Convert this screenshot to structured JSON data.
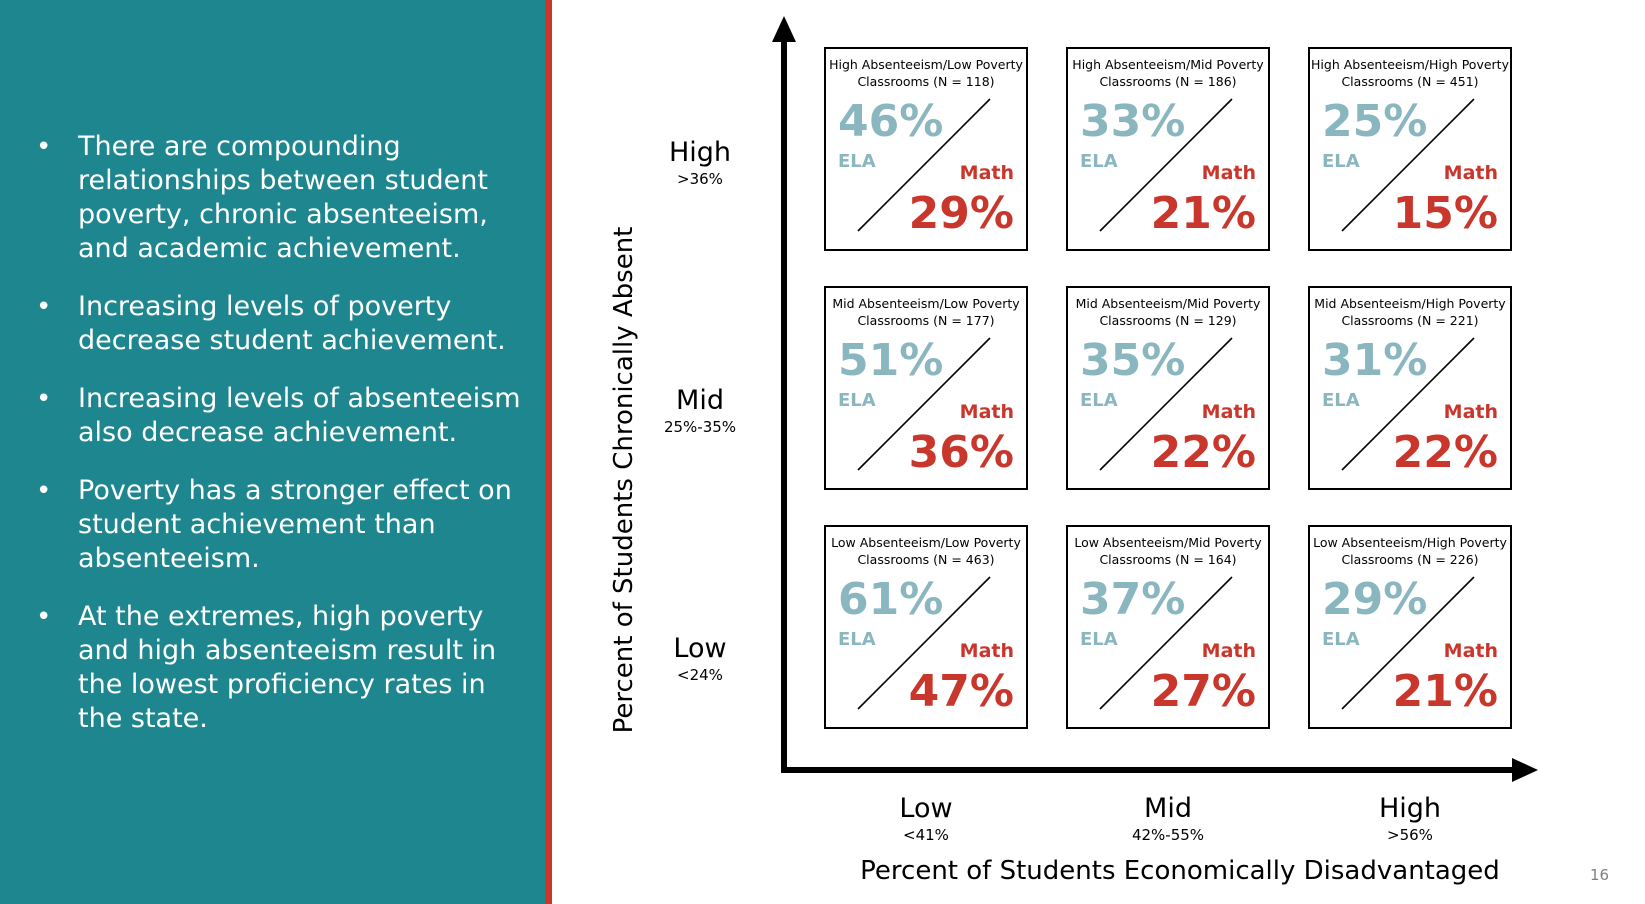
{
  "bullets": [
    "There are compounding relationships between student poverty, chronic absenteeism, and academic achievement.",
    "Increasing levels of poverty decrease student achievement.",
    "Increasing levels of absenteeism also decrease achievement.",
    "Poverty has a stronger effect on student achievement than absenteeism.",
    "At the extremes, high poverty and high absenteeism result in the lowest proficiency rates in the state."
  ],
  "y_axis": {
    "title": "Percent of Students Chronically Absent",
    "levels": [
      {
        "name": "High",
        "range": ">36%"
      },
      {
        "name": "Mid",
        "range": "25%-35%"
      },
      {
        "name": "Low",
        "range": "<24%"
      }
    ]
  },
  "x_axis": {
    "title": "Percent of Students Economically Disadvantaged",
    "levels": [
      {
        "name": "Low",
        "range": "<41%"
      },
      {
        "name": "Mid",
        "range": "42%-55%"
      },
      {
        "name": "High",
        "range": ">56%"
      }
    ]
  },
  "cell_labels": {
    "ela": "ELA",
    "math": "Math"
  },
  "cells": [
    {
      "line1": "High Absenteeism/Low Poverty",
      "line2": "Classrooms (N = 118)",
      "ela": "46%",
      "math": "29%"
    },
    {
      "line1": "High Absenteeism/Mid Poverty",
      "line2": "Classrooms (N = 186)",
      "ela": "33%",
      "math": "21%"
    },
    {
      "line1": "High Absenteeism/High Poverty",
      "line2": "Classrooms (N = 451)",
      "ela": "25%",
      "math": "15%"
    },
    {
      "line1": "Mid Absenteeism/Low Poverty",
      "line2": "Classrooms (N = 177)",
      "ela": "51%",
      "math": "36%"
    },
    {
      "line1": "Mid Absenteeism/Mid Poverty",
      "line2": "Classrooms (N = 129)",
      "ela": "35%",
      "math": "22%"
    },
    {
      "line1": "Mid Absenteeism/High Poverty",
      "line2": "Classrooms (N = 221)",
      "ela": "31%",
      "math": "22%"
    },
    {
      "line1": "Low Absenteeism/Low Poverty",
      "line2": "Classrooms (N = 463)",
      "ela": "61%",
      "math": "47%"
    },
    {
      "line1": "Low Absenteeism/Mid Poverty",
      "line2": "Classrooms (N = 164)",
      "ela": "37%",
      "math": "27%"
    },
    {
      "line1": "Low Absenteeism/High Poverty",
      "line2": "Classrooms (N = 226)",
      "ela": "29%",
      "math": "21%"
    }
  ],
  "page_number": "16",
  "colors": {
    "panel": "#1e868f",
    "accent_red": "#c9372c",
    "ela": "#8ab6bf"
  }
}
